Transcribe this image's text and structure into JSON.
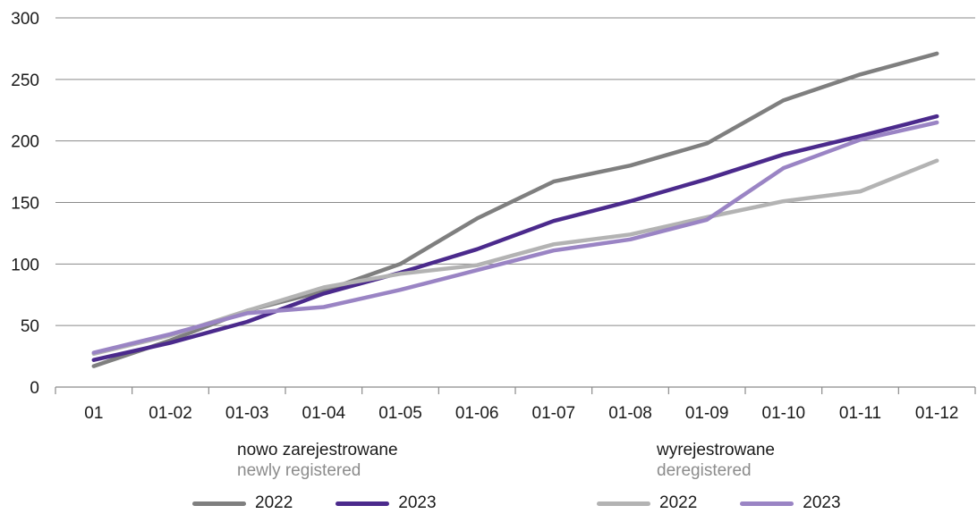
{
  "chart_data": {
    "type": "line",
    "categories": [
      "01",
      "01-02",
      "01-03",
      "01-04",
      "01-05",
      "01-06",
      "01-07",
      "01-08",
      "01-09",
      "01-10",
      "01-11",
      "01-12"
    ],
    "ylim": [
      0,
      300
    ],
    "yticks": [
      0,
      50,
      100,
      150,
      200,
      250,
      300
    ],
    "grid": "horizontal",
    "legend_position": "bottom",
    "groups": [
      {
        "title": "nowo zarejestrowane",
        "subtitle": "newly registered"
      },
      {
        "title": "wyrejestrowane",
        "subtitle": "deregistered"
      }
    ],
    "series": [
      {
        "name": "2022",
        "group": 0,
        "color": "#7f7f7f",
        "values": [
          17,
          38,
          62,
          78,
          100,
          137,
          167,
          180,
          198,
          233,
          254,
          271
        ]
      },
      {
        "name": "2023",
        "group": 0,
        "color": "#4b2a8c",
        "values": [
          22,
          36,
          53,
          76,
          93,
          112,
          135,
          151,
          169,
          189,
          204,
          220
        ]
      },
      {
        "name": "2022",
        "group": 1,
        "color": "#b3b3b3",
        "values": [
          27,
          42,
          62,
          81,
          92,
          99,
          116,
          124,
          138,
          151,
          159,
          184
        ]
      },
      {
        "name": "2023",
        "group": 1,
        "color": "#9a84c4",
        "values": [
          28,
          43,
          60,
          65,
          79,
          95,
          111,
          120,
          136,
          178,
          201,
          215
        ]
      }
    ]
  }
}
